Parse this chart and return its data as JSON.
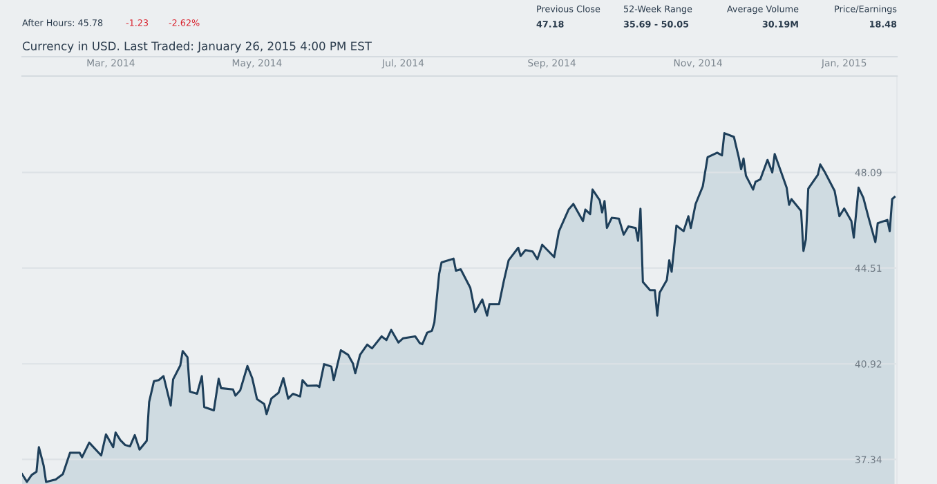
{
  "chart_data": {
    "type": "area",
    "title": "Currency in USD. Last Traded: January 26, 2015 4:00 PM EST",
    "annotations": [
      "After Hours: 45.78",
      "-1.23",
      "-2.62%",
      "Previous Close",
      "47.18",
      "52-Week Range",
      "35.69 - 50.05",
      "Average Volume",
      "30.19M",
      "Price/Earnings",
      "18.48"
    ],
    "x": [
      "2014-01-23",
      "2014-01-25",
      "2014-01-27",
      "2014-01-29",
      "2014-01-30",
      "2014-02-01",
      "2014-02-02",
      "2014-02-06",
      "2014-02-09",
      "2014-02-12",
      "2014-02-16",
      "2014-02-17",
      "2014-02-20",
      "2014-02-25",
      "2014-02-27",
      "2014-03-02",
      "2014-03-03",
      "2014-03-05",
      "2014-03-07",
      "2014-03-09",
      "2014-03-11",
      "2014-03-13",
      "2014-03-16",
      "2014-03-17",
      "2014-03-19",
      "2014-03-21",
      "2014-03-23",
      "2014-03-26",
      "2014-03-27",
      "2014-03-30",
      "2014-03-31",
      "2014-04-02",
      "2014-04-03",
      "2014-04-06",
      "2014-04-08",
      "2014-04-09",
      "2014-04-13",
      "2014-04-15",
      "2014-04-16",
      "2014-04-21",
      "2014-04-22",
      "2014-04-24",
      "2014-04-27",
      "2014-04-29",
      "2014-05-01",
      "2014-05-04",
      "2014-05-05",
      "2014-05-07",
      "2014-05-10",
      "2014-05-12",
      "2014-05-14",
      "2014-05-16",
      "2014-05-19",
      "2014-05-20",
      "2014-05-22",
      "2014-05-26",
      "2014-05-27",
      "2014-05-29",
      "2014-06-01",
      "2014-06-02",
      "2014-06-05",
      "2014-06-08",
      "2014-06-10",
      "2014-06-11",
      "2014-06-13",
      "2014-06-16",
      "2014-06-18",
      "2014-06-22",
      "2014-06-24",
      "2014-06-26",
      "2014-06-29",
      "2014-07-01",
      "2014-07-06",
      "2014-07-08",
      "2014-07-09",
      "2014-07-11",
      "2014-07-13",
      "2014-07-14",
      "2014-07-16",
      "2014-07-17",
      "2014-07-22",
      "2014-07-23",
      "2014-07-25",
      "2014-07-29",
      "2014-07-31",
      "2014-08-03",
      "2014-08-05",
      "2014-08-06",
      "2014-08-10",
      "2014-08-12",
      "2014-08-14",
      "2014-08-18",
      "2014-08-19",
      "2014-08-21",
      "2014-08-24",
      "2014-08-26",
      "2014-08-28",
      "2014-09-02",
      "2014-09-04",
      "2014-09-08",
      "2014-09-10",
      "2014-09-14",
      "2014-09-15",
      "2014-09-17",
      "2014-09-18",
      "2014-09-21",
      "2014-09-22",
      "2014-09-23",
      "2014-09-24",
      "2014-09-26",
      "2014-09-29",
      "2014-10-01",
      "2014-10-03",
      "2014-10-06",
      "2014-10-07",
      "2014-10-08",
      "2014-10-09",
      "2014-10-12",
      "2014-10-14",
      "2014-10-15",
      "2014-10-16",
      "2014-10-19",
      "2014-10-20",
      "2014-10-21",
      "2014-10-23",
      "2014-10-26",
      "2014-10-28",
      "2014-10-29",
      "2014-10-31",
      "2014-11-03",
      "2014-11-05",
      "2014-11-09",
      "2014-11-11",
      "2014-11-12",
      "2014-11-16",
      "2014-11-18",
      "2014-11-19",
      "2014-11-20",
      "2014-11-21",
      "2014-11-24",
      "2014-11-25",
      "2014-11-27",
      "2014-11-30",
      "2014-12-02",
      "2014-12-03",
      "2014-12-08",
      "2014-12-09",
      "2014-12-10",
      "2014-12-14",
      "2014-12-15",
      "2014-12-16",
      "2014-12-17",
      "2014-12-21",
      "2014-12-22",
      "2014-12-24",
      "2014-12-28",
      "2014-12-30",
      "2015-01-01",
      "2015-01-04",
      "2015-01-05",
      "2015-01-07",
      "2015-01-09",
      "2015-01-11",
      "2015-01-14",
      "2015-01-15",
      "2015-01-19",
      "2015-01-20",
      "2015-01-21",
      "2015-01-22"
    ],
    "series": [
      {
        "color": "#1e3f5a",
        "values": [
          36.79,
          36.5,
          36.76,
          36.88,
          37.8,
          37.1,
          36.5,
          36.59,
          36.79,
          37.59,
          37.59,
          37.42,
          37.97,
          37.49,
          38.28,
          37.8,
          38.35,
          38.06,
          37.88,
          37.83,
          38.25,
          37.71,
          38.04,
          39.49,
          40.27,
          40.31,
          40.46,
          39.36,
          40.34,
          40.86,
          41.4,
          41.17,
          39.88,
          39.8,
          40.46,
          39.3,
          39.18,
          40.36,
          40.01,
          39.96,
          39.73,
          39.93,
          40.84,
          40.39,
          39.6,
          39.42,
          39.04,
          39.62,
          39.84,
          40.39,
          39.62,
          39.8,
          39.7,
          40.31,
          40.1,
          40.11,
          40.05,
          40.91,
          40.82,
          40.31,
          41.43,
          41.26,
          40.94,
          40.57,
          41.26,
          41.64,
          41.5,
          41.95,
          41.81,
          42.19,
          41.72,
          41.88,
          41.95,
          41.69,
          41.66,
          42.09,
          42.16,
          42.47,
          44.29,
          44.72,
          44.86,
          44.41,
          44.46,
          43.77,
          42.86,
          43.33,
          42.73,
          43.16,
          43.16,
          44.03,
          44.8,
          45.27,
          44.96,
          45.18,
          45.13,
          44.84,
          45.38,
          44.92,
          45.89,
          46.7,
          46.91,
          46.27,
          46.7,
          46.53,
          47.45,
          47.05,
          46.59,
          47.02,
          46.01,
          46.39,
          46.36,
          45.76,
          46.07,
          46.01,
          45.53,
          46.73,
          43.99,
          43.68,
          43.68,
          42.73,
          43.59,
          44.06,
          44.8,
          44.37,
          46.1,
          45.89,
          46.45,
          46.01,
          46.91,
          47.57,
          48.66,
          48.83,
          48.73,
          49.56,
          49.42,
          48.66,
          48.21,
          48.61,
          47.97,
          47.45,
          47.74,
          47.83,
          48.56,
          48.09,
          48.78,
          47.52,
          46.88,
          47.09,
          46.65,
          45.15,
          45.58,
          47.48,
          48.0,
          48.39,
          48.09,
          47.4,
          46.45,
          46.74,
          46.27,
          45.65,
          47.52,
          47.14,
          46.45,
          45.48,
          46.19,
          46.31,
          45.89,
          47.09,
          47.17
        ]
      }
    ],
    "xlim": [
      "2014-01-23",
      "2015-01-23"
    ],
    "xticks": [
      {
        "value": "2014-03-01",
        "label": "Mar, 2014"
      },
      {
        "value": "2014-05-01",
        "label": "May, 2014"
      },
      {
        "value": "2014-07-01",
        "label": "Jul, 2014"
      },
      {
        "value": "2014-09-01",
        "label": "Sep, 2014"
      },
      {
        "value": "2014-11-01",
        "label": "Nov, 2014"
      },
      {
        "value": "2015-01-01",
        "label": "Jan, 2015"
      }
    ],
    "ylim": [
      36.42,
      51.7
    ],
    "yticks": [
      37.34,
      40.92,
      44.51,
      48.09
    ],
    "grid": "y"
  }
}
